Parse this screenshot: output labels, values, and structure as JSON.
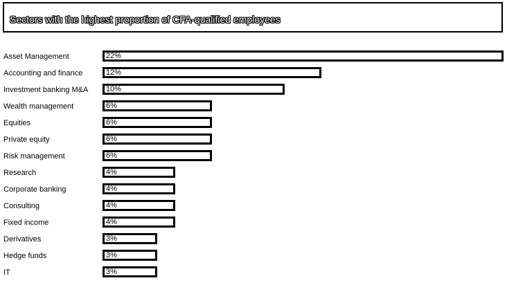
{
  "chart_data": {
    "type": "bar",
    "orientation": "horizontal",
    "title": "Sectors with the highest proportion of CFA-qualified employees",
    "categories": [
      "Asset Management",
      "Accounting and finance",
      "Investment banking M&A",
      "Wealth management",
      "Equities",
      "Private equity",
      "Risk management",
      "Research",
      "Corporate banking",
      "Consulting",
      "Fixed income",
      "Derivatives",
      "Hedge funds",
      "IT"
    ],
    "values": [
      22,
      12,
      10,
      6,
      6,
      6,
      6,
      4,
      4,
      4,
      4,
      3,
      3,
      3
    ],
    "value_labels": [
      "22%",
      "12%",
      "10%",
      "6%",
      "6%",
      "6%",
      "6%",
      "4%",
      "4%",
      "4%",
      "4%",
      "3%",
      "3%",
      "3%"
    ],
    "unit": "%",
    "xlim": [
      0,
      22
    ],
    "grid": false,
    "legend": "none"
  }
}
